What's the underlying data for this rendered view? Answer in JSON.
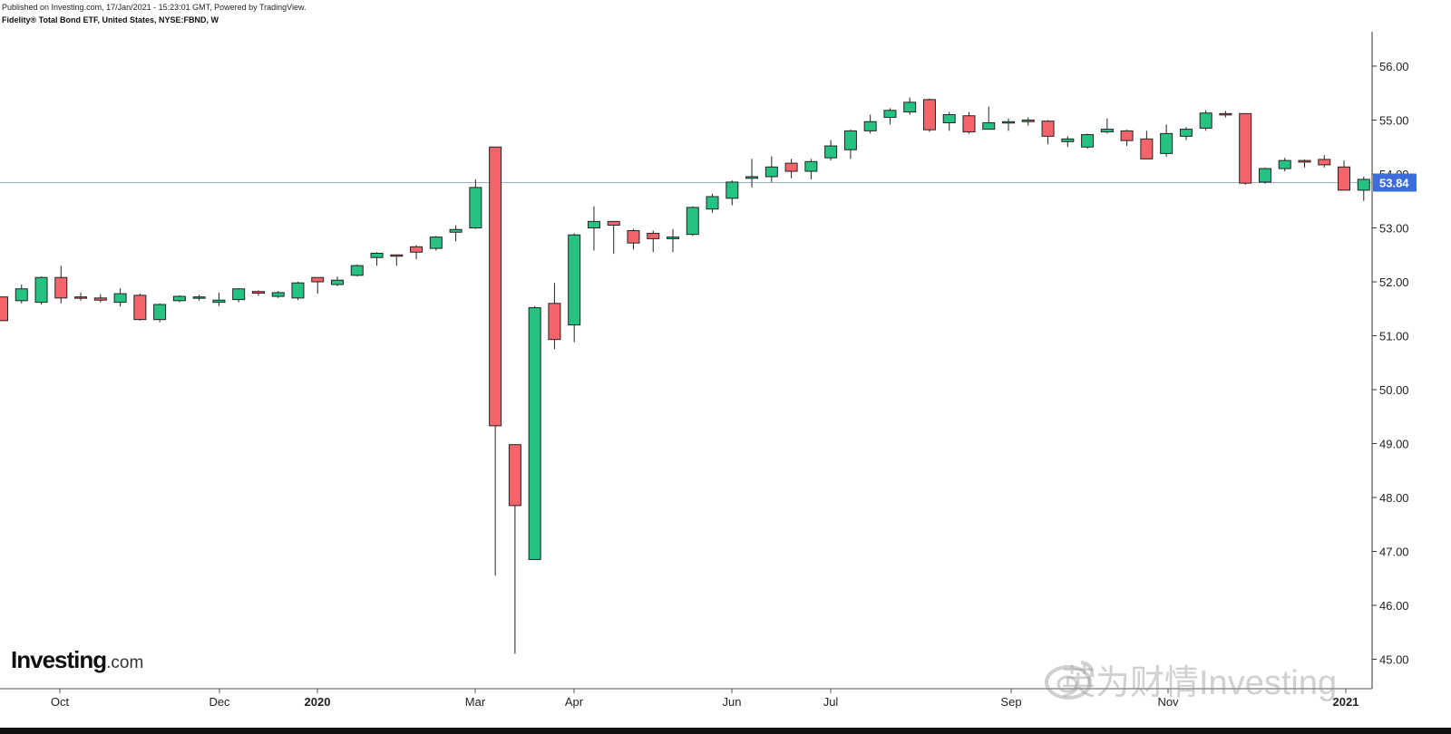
{
  "header": {
    "published": "Published on Investing.com, 17/Jan/2021 - 15:23:01 GMT, Powered by TradingView.",
    "symbol": "Fidelity® Total Bond ETF, United States, NYSE:FBND, W"
  },
  "logo": {
    "main": "Investing",
    "domain": ".com"
  },
  "watermark": {
    "text": "英为财情Investing",
    "icon": "weibo-icon"
  },
  "colors": {
    "up": "#26c281",
    "down": "#f5646a",
    "priceLine": "#7b90e0",
    "priceBadge": "#3b6ddb"
  },
  "chart_data": {
    "type": "candlestick",
    "ylim": [
      44.8,
      56.6
    ],
    "yticks": [
      "45.00",
      "46.00",
      "47.00",
      "48.00",
      "49.00",
      "50.00",
      "51.00",
      "52.00",
      "53.00",
      "54.00",
      "55.00",
      "56.00"
    ],
    "xlabels": [
      "Oct",
      "Dec",
      "2020",
      "Mar",
      "Apr",
      "Jun",
      "Jul",
      "Sep",
      "Nov",
      "2021"
    ],
    "last_price": "53.84",
    "candles": [
      [
        51.72,
        51.72,
        51.28,
        51.28
      ],
      [
        51.65,
        51.95,
        51.6,
        51.87
      ],
      [
        51.62,
        52.1,
        51.58,
        52.08
      ],
      [
        52.08,
        52.3,
        51.6,
        51.7
      ],
      [
        51.72,
        51.8,
        51.65,
        51.7
      ],
      [
        51.7,
        51.77,
        51.62,
        51.66
      ],
      [
        51.62,
        51.88,
        51.54,
        51.78
      ],
      [
        51.75,
        51.78,
        51.28,
        51.3
      ],
      [
        51.3,
        51.6,
        51.25,
        51.58
      ],
      [
        51.65,
        51.75,
        51.62,
        51.73
      ],
      [
        51.7,
        51.76,
        51.65,
        51.72
      ],
      [
        51.62,
        51.8,
        51.55,
        51.66
      ],
      [
        51.67,
        51.88,
        51.62,
        51.87
      ],
      [
        51.82,
        51.84,
        51.74,
        51.79
      ],
      [
        51.73,
        51.83,
        51.7,
        51.8
      ],
      [
        51.7,
        52.0,
        51.66,
        51.98
      ],
      [
        52.08,
        52.08,
        51.78,
        52.0
      ],
      [
        51.95,
        52.1,
        51.92,
        52.03
      ],
      [
        52.12,
        52.32,
        52.1,
        52.3
      ],
      [
        52.45,
        52.55,
        52.3,
        52.53
      ],
      [
        52.5,
        52.5,
        52.3,
        52.48
      ],
      [
        52.65,
        52.68,
        52.42,
        52.55
      ],
      [
        52.62,
        52.85,
        52.58,
        52.83
      ],
      [
        52.92,
        53.05,
        52.75,
        52.97
      ],
      [
        53.0,
        53.9,
        52.98,
        53.75
      ],
      [
        54.5,
        54.5,
        46.55,
        49.33
      ],
      [
        48.98,
        48.98,
        45.1,
        47.85
      ],
      [
        46.85,
        51.55,
        46.85,
        51.52
      ],
      [
        51.6,
        51.98,
        50.75,
        50.93
      ],
      [
        51.2,
        52.9,
        50.88,
        52.87
      ],
      [
        53.0,
        53.4,
        52.58,
        53.12
      ],
      [
        53.12,
        53.12,
        52.52,
        53.05
      ],
      [
        52.95,
        52.98,
        52.6,
        52.72
      ],
      [
        52.9,
        52.95,
        52.55,
        52.8
      ],
      [
        52.8,
        52.98,
        52.55,
        52.83
      ],
      [
        52.88,
        53.4,
        52.85,
        53.38
      ],
      [
        53.35,
        53.63,
        53.28,
        53.58
      ],
      [
        53.55,
        53.88,
        53.42,
        53.85
      ],
      [
        53.92,
        54.28,
        53.75,
        53.95
      ],
      [
        53.95,
        54.33,
        53.85,
        54.13
      ],
      [
        54.2,
        54.28,
        53.92,
        54.05
      ],
      [
        54.05,
        54.28,
        53.9,
        54.23
      ],
      [
        54.3,
        54.63,
        54.25,
        54.52
      ],
      [
        54.45,
        54.82,
        54.28,
        54.8
      ],
      [
        54.8,
        55.1,
        54.75,
        54.97
      ],
      [
        55.05,
        55.22,
        54.92,
        55.18
      ],
      [
        55.15,
        55.42,
        55.1,
        55.33
      ],
      [
        55.38,
        55.4,
        54.78,
        54.82
      ],
      [
        54.95,
        55.15,
        54.8,
        55.1
      ],
      [
        55.08,
        55.15,
        54.75,
        54.78
      ],
      [
        54.83,
        55.25,
        54.82,
        54.95
      ],
      [
        54.95,
        55.03,
        54.8,
        54.97
      ],
      [
        55.0,
        55.05,
        54.9,
        54.97
      ],
      [
        54.98,
        55.0,
        54.55,
        54.7
      ],
      [
        54.6,
        54.7,
        54.5,
        54.65
      ],
      [
        54.5,
        54.75,
        54.47,
        54.73
      ],
      [
        54.78,
        55.03,
        54.75,
        54.83
      ],
      [
        54.8,
        54.82,
        54.52,
        54.62
      ],
      [
        54.65,
        54.8,
        54.28,
        54.28
      ],
      [
        54.38,
        54.92,
        54.32,
        54.75
      ],
      [
        54.7,
        54.87,
        54.63,
        54.83
      ],
      [
        54.85,
        55.18,
        54.8,
        55.13
      ],
      [
        55.12,
        55.17,
        55.05,
        55.1
      ],
      [
        55.12,
        55.12,
        53.8,
        53.83
      ],
      [
        53.85,
        54.12,
        53.82,
        54.1
      ],
      [
        54.1,
        54.3,
        54.05,
        54.25
      ],
      [
        54.25,
        54.27,
        54.12,
        54.22
      ],
      [
        54.27,
        54.35,
        54.12,
        54.17
      ],
      [
        54.13,
        54.25,
        53.7,
        53.7
      ],
      [
        53.7,
        53.95,
        53.5,
        53.9
      ]
    ]
  }
}
